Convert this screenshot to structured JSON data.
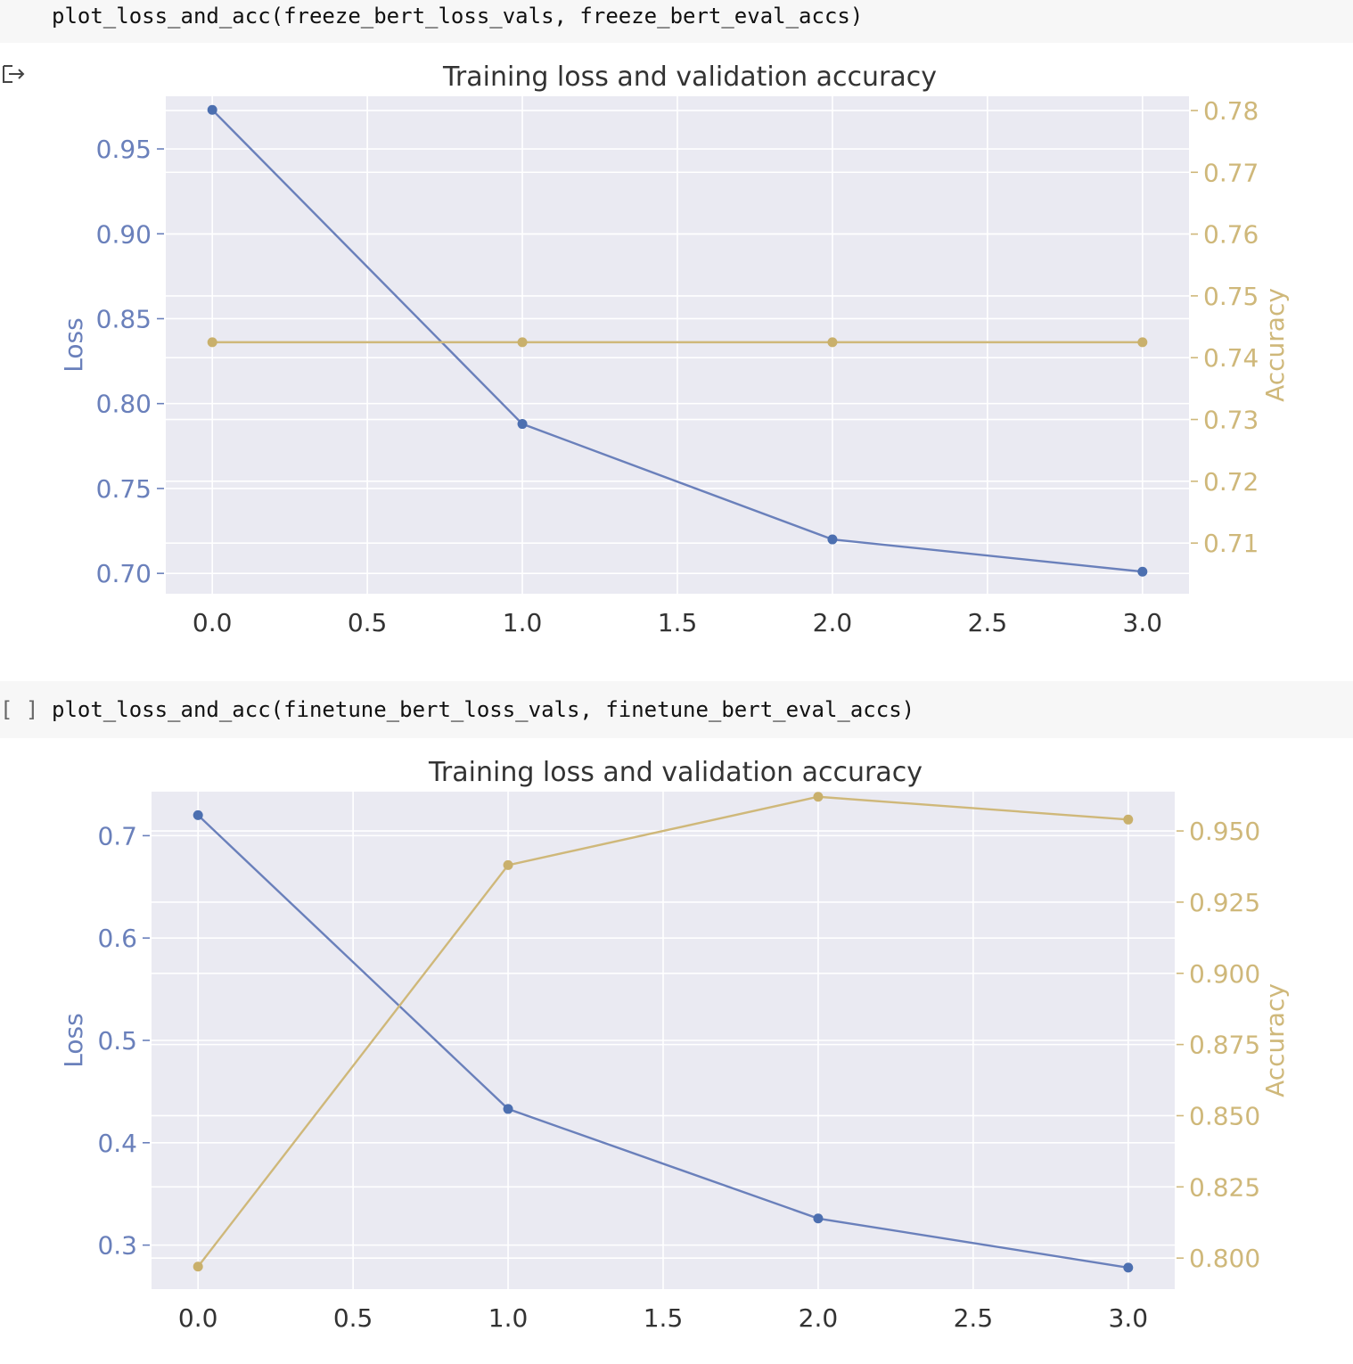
{
  "cells": [
    {
      "code": "plot_loss_and_acc(freeze_bert_loss_vals, freeze_bert_eval_accs)",
      "bracket": ""
    },
    {
      "code": "plot_loss_and_acc(finetune_bert_loss_vals, finetune_bert_eval_accs)",
      "bracket": "[ ]"
    }
  ],
  "output_icon": "output-arrow-icon",
  "colors": {
    "loss": "#6a80bb",
    "loss_marker": "#4c6fb0",
    "accuracy": "#cfb87a",
    "accuracy_marker": "#c9b06c",
    "plot_bg": "#eaeaf2",
    "grid": "#ffffff"
  },
  "chart_data": [
    {
      "type": "line",
      "title": "Training loss and validation accuracy",
      "xlabel": "",
      "ylabel": "Loss",
      "y2label": "Accuracy",
      "x": [
        0,
        1,
        2,
        3
      ],
      "xlim": [
        -0.15,
        3.15
      ],
      "xticks": [
        0.0,
        0.5,
        1.0,
        1.5,
        2.0,
        2.5,
        3.0
      ],
      "xtick_labels": [
        "0.0",
        "0.5",
        "1.0",
        "1.5",
        "2.0",
        "2.5",
        "3.0"
      ],
      "ylim": [
        0.688,
        0.981
      ],
      "yticks": [
        0.7,
        0.75,
        0.8,
        0.85,
        0.9,
        0.95
      ],
      "ytick_labels": [
        "0.70",
        "0.75",
        "0.80",
        "0.85",
        "0.90",
        "0.95"
      ],
      "y2lim": [
        0.7018,
        0.7823
      ],
      "y2ticks": [
        0.71,
        0.72,
        0.73,
        0.74,
        0.75,
        0.76,
        0.77,
        0.78
      ],
      "y2tick_labels": [
        "0.71",
        "0.72",
        "0.73",
        "0.74",
        "0.75",
        "0.76",
        "0.77",
        "0.78"
      ],
      "grid": true,
      "series": [
        {
          "name": "Loss",
          "axis": "left",
          "values": [
            0.973,
            0.788,
            0.72,
            0.701
          ]
        },
        {
          "name": "Accuracy",
          "axis": "right",
          "values": [
            0.7425,
            0.7425,
            0.7425,
            0.7425
          ]
        }
      ]
    },
    {
      "type": "line",
      "title": "Training loss and validation accuracy",
      "xlabel": "",
      "ylabel": "Loss",
      "y2label": "Accuracy",
      "x": [
        0,
        1,
        2,
        3
      ],
      "xlim": [
        -0.15,
        3.15
      ],
      "xticks": [
        0.0,
        0.5,
        1.0,
        1.5,
        2.0,
        2.5,
        3.0
      ],
      "xtick_labels": [
        "0.0",
        "0.5",
        "1.0",
        "1.5",
        "2.0",
        "2.5",
        "3.0"
      ],
      "ylim": [
        0.257,
        0.743
      ],
      "yticks": [
        0.3,
        0.4,
        0.5,
        0.6,
        0.7
      ],
      "ytick_labels": [
        "0.3",
        "0.4",
        "0.5",
        "0.6",
        "0.7"
      ],
      "y2lim": [
        0.7891,
        0.9638
      ],
      "y2ticks": [
        0.8,
        0.825,
        0.85,
        0.875,
        0.9,
        0.925,
        0.95
      ],
      "y2tick_labels": [
        "0.800",
        "0.825",
        "0.850",
        "0.875",
        "0.900",
        "0.925",
        "0.950"
      ],
      "grid": true,
      "series": [
        {
          "name": "Loss",
          "axis": "left",
          "values": [
            0.72,
            0.433,
            0.326,
            0.278
          ]
        },
        {
          "name": "Accuracy",
          "axis": "right",
          "values": [
            0.797,
            0.938,
            0.962,
            0.954
          ]
        }
      ]
    }
  ]
}
